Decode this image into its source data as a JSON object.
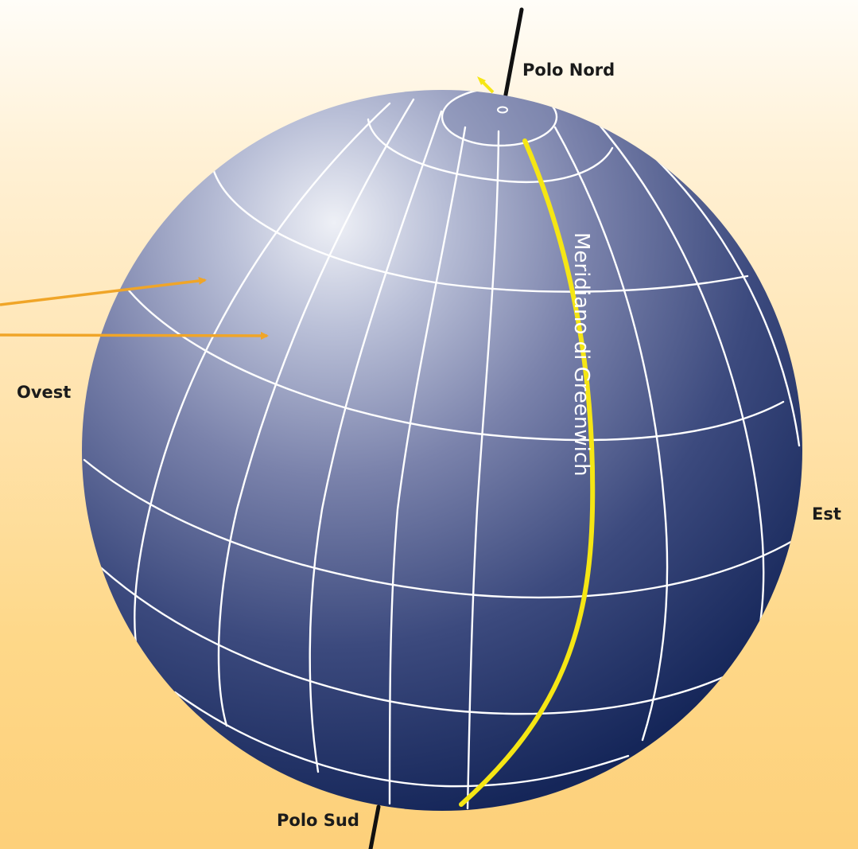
{
  "labels": {
    "north_pole": "Polo Nord",
    "south_pole": "Polo Sud",
    "west": "Ovest",
    "east": "Est",
    "prime_meridian": "Meridiano di Greenwich"
  },
  "colors": {
    "background_top": "#fffdf8",
    "background_bottom": "#fdd07a",
    "globe_highlight": "#eef0f6",
    "globe_shadow": "#17285a",
    "grid_lines": "#ffffff",
    "prime_meridian": "#f5e614",
    "arrows": "#f0a528",
    "axis": "#111111"
  }
}
